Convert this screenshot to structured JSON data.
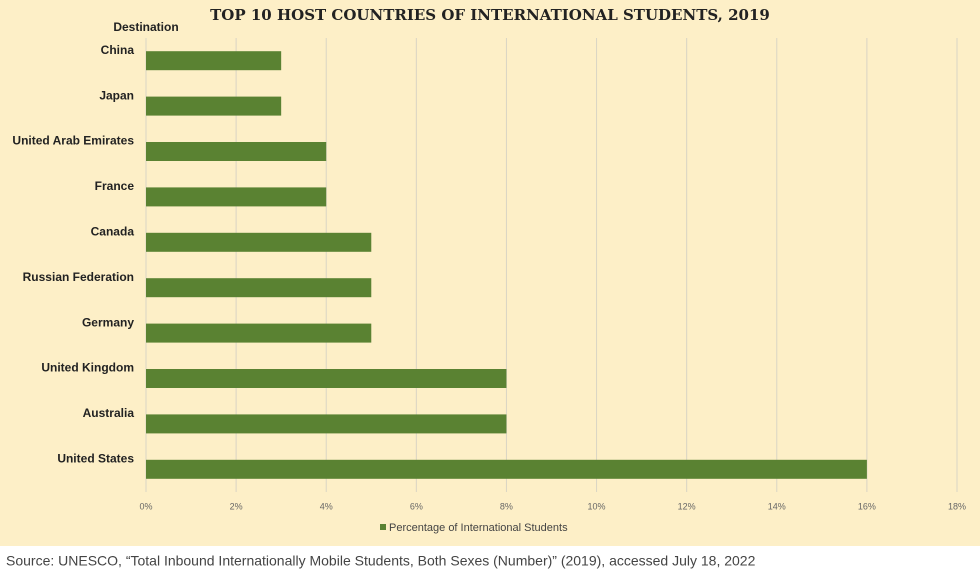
{
  "chart_data": {
    "type": "hbar",
    "title": "TOP 10 HOST COUNTRIES OF INTERNATIONAL STUDENTS, 2019",
    "ylabel": "Destination",
    "categories": [
      "China",
      "Japan",
      "United Arab Emirates",
      "France",
      "Canada",
      "Russian Federation",
      "Germany",
      "United Kingdom",
      "Australia",
      "United States"
    ],
    "series": [
      {
        "name": "Percentage of International Students",
        "color": "#5a8232",
        "values": [
          3,
          3,
          4,
          4,
          5,
          5,
          5,
          8,
          8,
          16
        ]
      }
    ],
    "xlim": [
      0,
      18
    ],
    "xticks": [
      {
        "value": 0,
        "label": "0%"
      },
      {
        "value": 2,
        "label": "2%"
      },
      {
        "value": 4,
        "label": "4%"
      },
      {
        "value": 6,
        "label": "6%"
      },
      {
        "value": 8,
        "label": "8%"
      },
      {
        "value": 10,
        "label": "10%"
      },
      {
        "value": 12,
        "label": "12%"
      },
      {
        "value": 14,
        "label": "14%"
      },
      {
        "value": 16,
        "label": "16%"
      },
      {
        "value": 18,
        "label": "18%"
      }
    ],
    "grid": true,
    "legend": "bottom",
    "source": "Source: UNESCO, “Total Inbound Internationally Mobile Students, Both Sexes (Number)” (2019), accessed July 18, 2022"
  }
}
